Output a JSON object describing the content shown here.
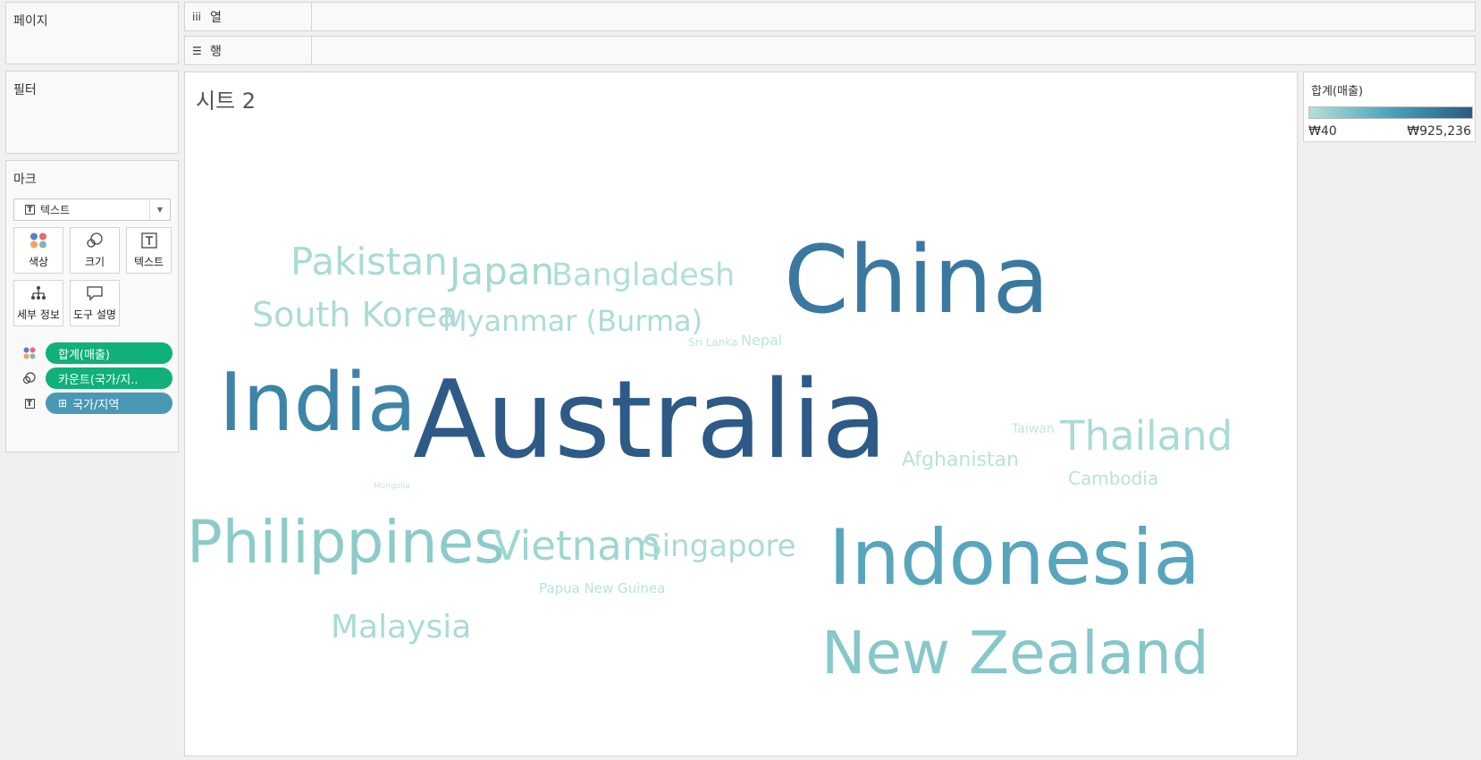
{
  "shelves": {
    "pages_label": "페이지",
    "columns": {
      "icon": "iii",
      "label": "열"
    },
    "rows": {
      "icon": "☰",
      "label": "행"
    },
    "filters_label": "필터"
  },
  "marks": {
    "title": "마크",
    "type_select": {
      "icon": "T",
      "label": "텍스트"
    },
    "buttons": [
      {
        "name": "color",
        "label": "색상"
      },
      {
        "name": "size",
        "label": "크기"
      },
      {
        "name": "text",
        "label": "텍스트"
      },
      {
        "name": "detail",
        "label": "세부 정보"
      },
      {
        "name": "tooltip",
        "label": "도구 설명"
      }
    ],
    "pills": [
      {
        "icon": "color-dots-icon",
        "label": "합계(매출)",
        "color": "#0fb07a"
      },
      {
        "icon": "size-icon",
        "label": "카운트(국가/지..",
        "color": "#0fb07a"
      },
      {
        "icon": "text-icon",
        "prefix": "⊞",
        "label": "국가/지역",
        "color": "#4a98b4"
      }
    ]
  },
  "sheet": {
    "title": "시트 2"
  },
  "legend": {
    "title": "합계(매출)",
    "min_label": "₩40",
    "max_label": "₩925,236",
    "color_start": "#b4e0d8",
    "color_mid": "#4aa3bb",
    "color_end": "#2b5a85"
  },
  "chart_data": {
    "type": "word-cloud",
    "measure": "합계(매출)",
    "words": [
      {
        "text": "Australia",
        "color": "#2e5a87"
      },
      {
        "text": "China",
        "color": "#3a78a0"
      },
      {
        "text": "India",
        "color": "#3d84a8"
      },
      {
        "text": "Indonesia",
        "color": "#57a6bd"
      },
      {
        "text": "Philippines",
        "color": "#8ccbc9"
      },
      {
        "text": "New Zealand",
        "color": "#86c7c9"
      },
      {
        "text": "Pakistan",
        "color": "#a9dbd5"
      },
      {
        "text": "Japan",
        "color": "#a5d9d3"
      },
      {
        "text": "Bangladesh",
        "color": "#b0dfd8"
      },
      {
        "text": "South Korea",
        "color": "#abdcd6"
      },
      {
        "text": "Myanmar (Burma)",
        "color": "#acdcd6"
      },
      {
        "text": "Sri Lanka",
        "color": "#c0e6df"
      },
      {
        "text": "Nepal",
        "color": "#bde4dd"
      },
      {
        "text": "Thailand",
        "color": "#a9dbd5"
      },
      {
        "text": "Taiwan",
        "color": "#c0e6df"
      },
      {
        "text": "Afghanistan",
        "color": "#b8e2db"
      },
      {
        "text": "Cambodia",
        "color": "#b8e2db"
      },
      {
        "text": "Mongolia",
        "color": "#c4e7e1"
      },
      {
        "text": "Vietnam",
        "color": "#9ed6d0"
      },
      {
        "text": "Singapore",
        "color": "#aadbd5"
      },
      {
        "text": "Papua New Guinea",
        "color": "#b8e2db"
      },
      {
        "text": "Malaysia",
        "color": "#a9dbd5"
      }
    ]
  }
}
